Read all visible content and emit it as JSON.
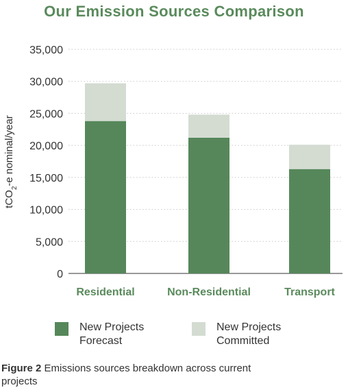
{
  "colors": {
    "accent": "#5a8a5c",
    "forecast": "#56875a",
    "committed": "#d4dcd2",
    "grid": "#c8c8c8",
    "axis": "#333333"
  },
  "chart_data": {
    "type": "bar",
    "stacked": true,
    "title": "Our Emission Sources Comparison",
    "ylabel_pre": "tCO",
    "ylabel_sub": "2",
    "ylabel_post": "-e nominal/year",
    "categories": [
      "Residential",
      "Non-Residential",
      "Transport"
    ],
    "yticks": [
      "0",
      "5,000",
      "10,000",
      "15,000",
      "20,000",
      "25,000",
      "30,000",
      "35,000"
    ],
    "ylim": [
      0,
      35000
    ],
    "grid": true,
    "grid_style": "dotted",
    "legend_position": "bottom",
    "series": [
      {
        "name_line1": "New Projects",
        "name_line2": "Forecast",
        "values": [
          23800,
          21200,
          16300
        ]
      },
      {
        "name_line1": "New Projects",
        "name_line2": "Committed",
        "values": [
          5900,
          3600,
          3800
        ]
      }
    ]
  },
  "caption": {
    "label": "Figure 2",
    "text": " Emissions sources breakdown across current projects"
  }
}
